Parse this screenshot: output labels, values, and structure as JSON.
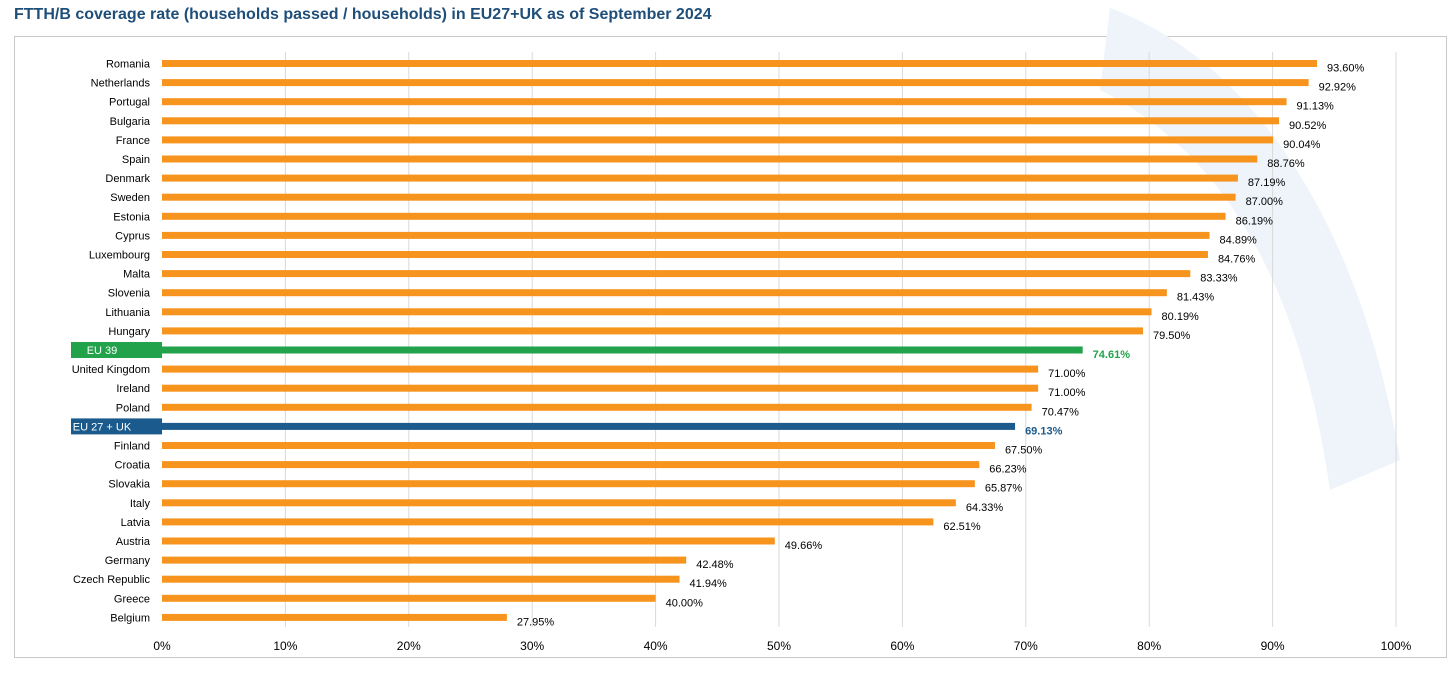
{
  "chart_data": {
    "type": "bar",
    "orientation": "horizontal",
    "title": "FTTH/B coverage rate (households passed / households) in EU27+UK as of September 2024",
    "xlabel": "",
    "ylabel": "",
    "xlim": [
      0,
      100
    ],
    "xticks": [
      "0%",
      "10%",
      "20%",
      "30%",
      "40%",
      "50%",
      "60%",
      "70%",
      "80%",
      "90%",
      "100%"
    ],
    "grid": "vertical",
    "categories": [
      "Romania",
      "Netherlands",
      "Portugal",
      "Bulgaria",
      "France",
      "Spain",
      "Denmark",
      "Sweden",
      "Estonia",
      "Cyprus",
      "Luxembourg",
      "Malta",
      "Slovenia",
      "Lithuania",
      "Hungary",
      "EU 39",
      "United Kingdom",
      "Ireland",
      "Poland",
      "EU 27 + UK",
      "Finland",
      "Croatia",
      "Slovakia",
      "Italy",
      "Latvia",
      "Austria",
      "Germany",
      "Czech Republic",
      "Greece",
      "Belgium"
    ],
    "values": [
      93.6,
      92.92,
      91.13,
      90.52,
      90.04,
      88.76,
      87.19,
      87.0,
      86.19,
      84.89,
      84.76,
      83.33,
      81.43,
      80.19,
      79.5,
      74.61,
      71.0,
      71.0,
      70.47,
      69.13,
      67.5,
      66.23,
      65.87,
      64.33,
      62.51,
      49.66,
      42.48,
      41.94,
      40.0,
      27.95
    ],
    "value_labels": [
      "93.60%",
      "92.92%",
      "91.13%",
      "90.52%",
      "90.04%",
      "88.76%",
      "87.19%",
      "87.00%",
      "86.19%",
      "84.89%",
      "84.76%",
      "83.33%",
      "81.43%",
      "80.19%",
      "79.50%",
      "74.61%",
      "71.00%",
      "71.00%",
      "70.47%",
      "69.13%",
      "67.50%",
      "66.23%",
      "65.87%",
      "64.33%",
      "62.51%",
      "49.66%",
      "42.48%",
      "41.94%",
      "40.00%",
      "27.95%"
    ],
    "highlight": {
      "EU 39": "#22a24a",
      "EU 27 + UK": "#1b5a8c"
    },
    "colors": {
      "default_bar": "#f7941d",
      "label_text": "#000000",
      "grid": "#d9d9d9"
    }
  }
}
